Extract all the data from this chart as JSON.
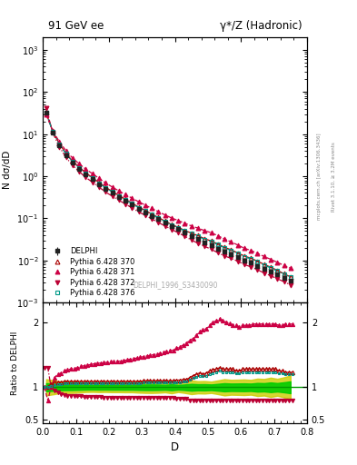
{
  "title_left": "91 GeV ee",
  "title_right": "γ*/Z (Hadronic)",
  "ylabel_main": "N dσ/dD",
  "ylabel_ratio": "Ratio to DELPHI",
  "xlabel": "D",
  "watermark": "DELPHI_1996_S3430090",
  "right_label": "Rivet 3.1.10, ≥ 3.2M events",
  "right_label2": "mcplots.cern.ch [arXiv:1306.3436]",
  "delphi_x": [
    0.01,
    0.03,
    0.05,
    0.07,
    0.09,
    0.11,
    0.13,
    0.15,
    0.17,
    0.19,
    0.21,
    0.23,
    0.25,
    0.27,
    0.29,
    0.31,
    0.33,
    0.35,
    0.37,
    0.39,
    0.41,
    0.43,
    0.45,
    0.47,
    0.49,
    0.51,
    0.53,
    0.55,
    0.57,
    0.59,
    0.61,
    0.63,
    0.65,
    0.67,
    0.69,
    0.71,
    0.73,
    0.75
  ],
  "delphi_y": [
    32,
    11,
    5.5,
    3.2,
    2.1,
    1.5,
    1.1,
    0.85,
    0.65,
    0.5,
    0.4,
    0.32,
    0.26,
    0.21,
    0.17,
    0.14,
    0.115,
    0.095,
    0.078,
    0.065,
    0.055,
    0.046,
    0.038,
    0.032,
    0.027,
    0.023,
    0.019,
    0.016,
    0.014,
    0.012,
    0.01,
    0.0088,
    0.0075,
    0.0063,
    0.0054,
    0.0046,
    0.0039,
    0.0033
  ],
  "delphi_yerr_lo": [
    2.0,
    0.6,
    0.25,
    0.14,
    0.09,
    0.06,
    0.04,
    0.03,
    0.024,
    0.018,
    0.015,
    0.012,
    0.01,
    0.008,
    0.007,
    0.006,
    0.005,
    0.004,
    0.003,
    0.003,
    0.002,
    0.002,
    0.002,
    0.0015,
    0.0013,
    0.001,
    0.001,
    0.001,
    0.0008,
    0.0007,
    0.0006,
    0.0005,
    0.0005,
    0.0004,
    0.0004,
    0.0003,
    0.0003,
    0.0003
  ],
  "delphi_yerr_hi": [
    2.0,
    0.6,
    0.25,
    0.14,
    0.09,
    0.06,
    0.04,
    0.03,
    0.024,
    0.018,
    0.015,
    0.012,
    0.01,
    0.008,
    0.007,
    0.006,
    0.005,
    0.004,
    0.003,
    0.003,
    0.002,
    0.002,
    0.002,
    0.0015,
    0.0013,
    0.001,
    0.001,
    0.001,
    0.0008,
    0.0007,
    0.0006,
    0.0005,
    0.0005,
    0.0004,
    0.0004,
    0.0003,
    0.0003,
    0.0003
  ],
  "py370_x": [
    0.005,
    0.015,
    0.025,
    0.035,
    0.045,
    0.055,
    0.065,
    0.075,
    0.085,
    0.095,
    0.105,
    0.115,
    0.125,
    0.135,
    0.145,
    0.155,
    0.165,
    0.175,
    0.185,
    0.195,
    0.205,
    0.215,
    0.225,
    0.235,
    0.245,
    0.255,
    0.265,
    0.275,
    0.285,
    0.295,
    0.305,
    0.315,
    0.325,
    0.335,
    0.345,
    0.355,
    0.365,
    0.375,
    0.385,
    0.395,
    0.405,
    0.415,
    0.425,
    0.435,
    0.445,
    0.455,
    0.465,
    0.475,
    0.485,
    0.495,
    0.505,
    0.515,
    0.525,
    0.535,
    0.545,
    0.555,
    0.565,
    0.575,
    0.585,
    0.595,
    0.605,
    0.615,
    0.625,
    0.635,
    0.645,
    0.655,
    0.665,
    0.675,
    0.685,
    0.695,
    0.705,
    0.715,
    0.725,
    0.735,
    0.745,
    0.755
  ],
  "py370_ratio": [
    1.0,
    1.0,
    1.05,
    1.08,
    1.08,
    1.08,
    1.09,
    1.09,
    1.09,
    1.09,
    1.09,
    1.09,
    1.09,
    1.09,
    1.09,
    1.09,
    1.09,
    1.09,
    1.09,
    1.09,
    1.09,
    1.09,
    1.09,
    1.09,
    1.09,
    1.09,
    1.09,
    1.09,
    1.09,
    1.09,
    1.1,
    1.1,
    1.1,
    1.1,
    1.1,
    1.1,
    1.1,
    1.1,
    1.1,
    1.1,
    1.11,
    1.11,
    1.12,
    1.12,
    1.15,
    1.18,
    1.2,
    1.22,
    1.2,
    1.22,
    1.25,
    1.27,
    1.28,
    1.3,
    1.28,
    1.28,
    1.28,
    1.28,
    1.25,
    1.25,
    1.28,
    1.28,
    1.28,
    1.28,
    1.28,
    1.28,
    1.28,
    1.28,
    1.28,
    1.28,
    1.28,
    1.25,
    1.25,
    1.23,
    1.23,
    1.23
  ],
  "py371_ratio": [
    1.0,
    0.8,
    1.0,
    1.15,
    1.2,
    1.22,
    1.25,
    1.27,
    1.28,
    1.29,
    1.3,
    1.32,
    1.33,
    1.34,
    1.35,
    1.36,
    1.37,
    1.37,
    1.38,
    1.38,
    1.39,
    1.39,
    1.4,
    1.4,
    1.41,
    1.42,
    1.43,
    1.44,
    1.45,
    1.46,
    1.47,
    1.48,
    1.49,
    1.5,
    1.51,
    1.52,
    1.54,
    1.55,
    1.56,
    1.57,
    1.6,
    1.62,
    1.65,
    1.68,
    1.72,
    1.75,
    1.8,
    1.85,
    1.88,
    1.9,
    1.95,
    2.0,
    2.02,
    2.05,
    2.03,
    2.0,
    1.98,
    1.96,
    1.95,
    1.93,
    1.95,
    1.95,
    1.95,
    1.97,
    1.97,
    1.97,
    1.97,
    1.97,
    1.97,
    1.97,
    1.97,
    1.95,
    1.95,
    1.97,
    1.97,
    1.97
  ],
  "py372_ratio": [
    1.3,
    1.3,
    1.0,
    0.95,
    0.92,
    0.9,
    0.88,
    0.87,
    0.87,
    0.86,
    0.86,
    0.86,
    0.85,
    0.85,
    0.85,
    0.85,
    0.85,
    0.85,
    0.84,
    0.84,
    0.84,
    0.84,
    0.84,
    0.84,
    0.84,
    0.84,
    0.84,
    0.84,
    0.84,
    0.84,
    0.84,
    0.84,
    0.84,
    0.84,
    0.84,
    0.84,
    0.84,
    0.84,
    0.84,
    0.84,
    0.82,
    0.82,
    0.82,
    0.82,
    0.8,
    0.8,
    0.8,
    0.8,
    0.8,
    0.8,
    0.8,
    0.8,
    0.8,
    0.8,
    0.8,
    0.8,
    0.8,
    0.8,
    0.8,
    0.8,
    0.8,
    0.8,
    0.8,
    0.8,
    0.8,
    0.8,
    0.8,
    0.8,
    0.8,
    0.8,
    0.8,
    0.8,
    0.8,
    0.8,
    0.8,
    0.8
  ],
  "py376_ratio": [
    1.0,
    1.0,
    1.02,
    1.04,
    1.05,
    1.05,
    1.06,
    1.06,
    1.06,
    1.06,
    1.06,
    1.06,
    1.06,
    1.06,
    1.06,
    1.06,
    1.06,
    1.06,
    1.06,
    1.06,
    1.06,
    1.06,
    1.06,
    1.06,
    1.06,
    1.06,
    1.06,
    1.06,
    1.06,
    1.06,
    1.07,
    1.07,
    1.07,
    1.07,
    1.07,
    1.07,
    1.07,
    1.07,
    1.07,
    1.07,
    1.08,
    1.08,
    1.09,
    1.09,
    1.12,
    1.14,
    1.16,
    1.18,
    1.17,
    1.18,
    1.2,
    1.22,
    1.23,
    1.25,
    1.23,
    1.23,
    1.23,
    1.23,
    1.21,
    1.21,
    1.23,
    1.23,
    1.23,
    1.23,
    1.23,
    1.23,
    1.23,
    1.23,
    1.23,
    1.23,
    1.23,
    1.21,
    1.21,
    1.2,
    1.2,
    1.2
  ],
  "color_delphi": "#222222",
  "color_py370": "#aa0000",
  "color_py371": "#cc0044",
  "color_py372": "#bb0033",
  "color_py376": "#009988",
  "band_green": "#00cc00",
  "band_yellow": "#cccc00",
  "xlim": [
    0.0,
    0.8
  ],
  "ylim_main": [
    0.001,
    2000
  ],
  "ylim_ratio": [
    0.45,
    2.3
  ],
  "ratio_yticks": [
    0.5,
    1.0,
    2.0
  ]
}
